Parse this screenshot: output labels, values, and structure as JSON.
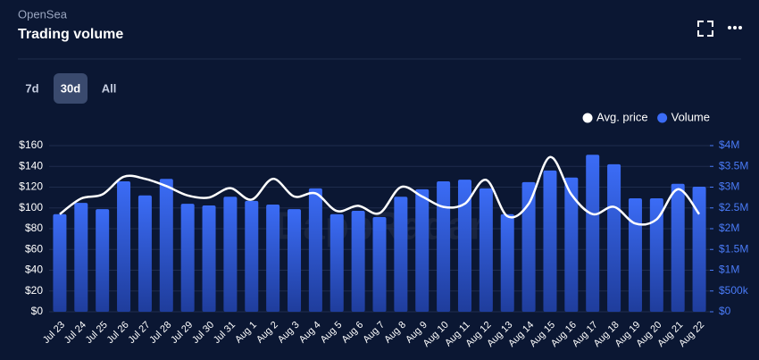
{
  "header": {
    "source": "OpenSea",
    "title": "Trading volume"
  },
  "tabs": [
    "7d",
    "30d",
    "All"
  ],
  "active_tab": 1,
  "watermark": "DappRadar",
  "chart_data": {
    "type": "bar",
    "categories": [
      "Jul 23",
      "Jul 24",
      "Jul 25",
      "Jul 26",
      "Jul 27",
      "Jul 28",
      "Jul 29",
      "Jul 30",
      "Jul 31",
      "Aug 1",
      "Aug 2",
      "Aug 3",
      "Aug 4",
      "Aug 5",
      "Aug 6",
      "Aug 7",
      "Aug 8",
      "Aug 9",
      "Aug 10",
      "Aug 11",
      "Aug 12",
      "Aug 13",
      "Aug 14",
      "Aug 15",
      "Aug 16",
      "Aug 17",
      "Aug 18",
      "Aug 19",
      "Aug 20",
      "Aug 21",
      "Aug 22"
    ],
    "series": [
      {
        "name": "Avg. price",
        "color": "#ffffff",
        "type": "line",
        "values": [
          94,
          109,
          113,
          130,
          128,
          121,
          112,
          110,
          119,
          108,
          128,
          111,
          114,
          97,
          102,
          95,
          120,
          111,
          101,
          104,
          127,
          92,
          104,
          149,
          113,
          94,
          101,
          85,
          89,
          118,
          94
        ]
      },
      {
        "name": "Volume",
        "color": "#3b6cf6",
        "type": "bar",
        "axis": "y2",
        "values": [
          2350000,
          2620000,
          2470000,
          3140000,
          2800000,
          3200000,
          2600000,
          2560000,
          2770000,
          2670000,
          2580000,
          2470000,
          2970000,
          2350000,
          2430000,
          2280000,
          2770000,
          2950000,
          3140000,
          3180000,
          2970000,
          2350000,
          3120000,
          3400000,
          3230000,
          3780000,
          3550000,
          2730000,
          2730000,
          3080000,
          3010000
        ]
      }
    ],
    "ylim": [
      0,
      160
    ],
    "yticks": [
      {
        "value": 0,
        "label": "$0"
      },
      {
        "value": 20,
        "label": "$20"
      },
      {
        "value": 40,
        "label": "$40"
      },
      {
        "value": 60,
        "label": "$60"
      },
      {
        "value": 80,
        "label": "$80"
      },
      {
        "value": 100,
        "label": "$100"
      },
      {
        "value": 120,
        "label": "$120"
      },
      {
        "value": 140,
        "label": "$140"
      },
      {
        "value": 160,
        "label": "$160"
      }
    ],
    "y2lim": [
      0,
      4000000
    ],
    "y2ticks": [
      {
        "value": 0,
        "label": "$0"
      },
      {
        "value": 500000,
        "label": "$500k"
      },
      {
        "value": 1000000,
        "label": "$1M"
      },
      {
        "value": 1500000,
        "label": "$1.5M"
      },
      {
        "value": 2000000,
        "label": "$2M"
      },
      {
        "value": 2500000,
        "label": "$2.5M"
      },
      {
        "value": 3000000,
        "label": "$3M"
      },
      {
        "value": 3500000,
        "label": "$3.5M"
      },
      {
        "value": 4000000,
        "label": "$4M"
      }
    ],
    "grid": true,
    "legend": "top-right"
  }
}
